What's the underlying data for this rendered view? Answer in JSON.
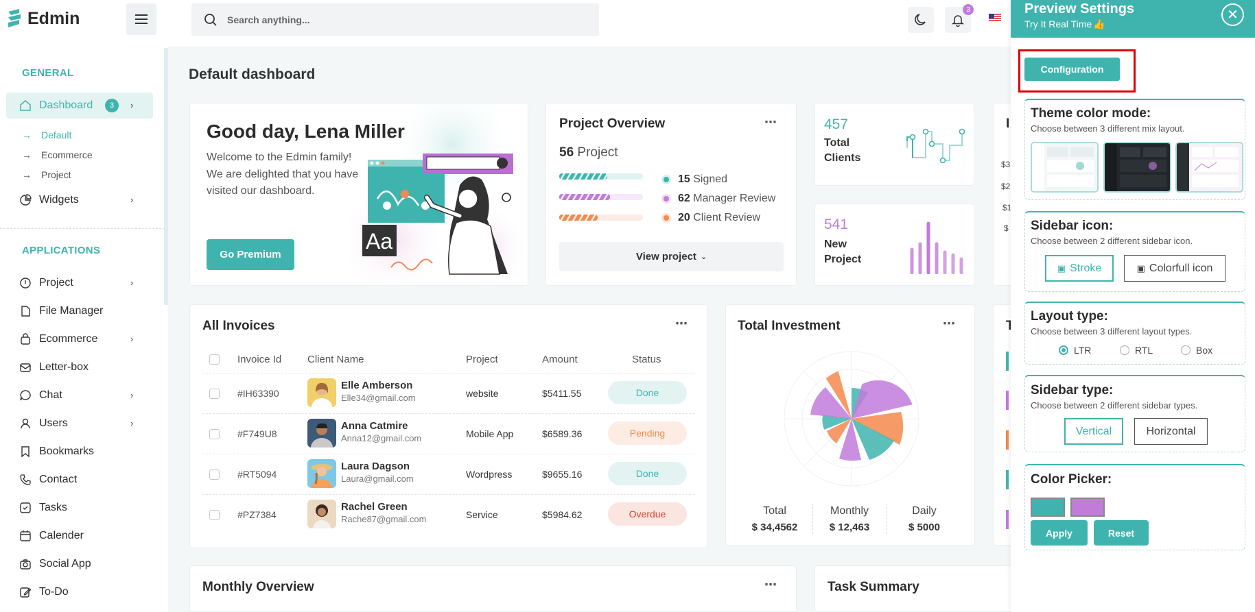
{
  "header": {
    "logo": "Edmin",
    "search_placeholder": "Search anything...",
    "notification_count": "3"
  },
  "sidebar": {
    "general_title": "GENERAL",
    "dashboard_label": "Dashboard",
    "dashboard_count": "3",
    "dashboard_subitems": [
      "Default",
      "Ecommerce",
      "Project"
    ],
    "widgets_label": "Widgets",
    "applications_title": "APPLICATIONS",
    "apps": [
      "Project",
      "File Manager",
      "Ecommerce",
      "Letter-box",
      "Chat",
      "Users",
      "Bookmarks",
      "Contact",
      "Tasks",
      "Calender",
      "Social App",
      "To-Do"
    ]
  },
  "page_title": "Default dashboard",
  "welcome": {
    "greeting": "Good day, Lena Miller",
    "text": "Welcome to the Edmin family! We are delighted that you have visited our dashboard.",
    "button": "Go Premium",
    "illustration_text": "Aa"
  },
  "project_overview": {
    "title": "Project Overview",
    "count": "56",
    "count_label": "Project",
    "legend": [
      {
        "value": "15",
        "label": "Signed",
        "color": "#3fb4ae"
      },
      {
        "value": "62",
        "label": "Manager Review",
        "color": "#c17bdb"
      },
      {
        "value": "20",
        "label": "Client Review",
        "color": "#f5884d"
      }
    ],
    "view_button": "View project"
  },
  "stats": {
    "clients_value": "457",
    "clients_label_1": "Total",
    "clients_label_2": "Clients",
    "projects_value": "541",
    "projects_label_1": "New",
    "projects_label_2": "Project"
  },
  "partial_card": {
    "letter": "I",
    "tick_prefixes": [
      "$3",
      "$2",
      "$1",
      "$"
    ]
  },
  "invoices": {
    "title": "All Invoices",
    "headers": [
      "Invoice Id",
      "Client Name",
      "Project",
      "Amount",
      "Status"
    ],
    "rows": [
      {
        "id": "#IH63390",
        "name": "Elle Amberson",
        "email": "Elle34@gmail.com",
        "project": "website",
        "amount": "$5411.55",
        "status": "Done"
      },
      {
        "id": "#F749U8",
        "name": "Anna Catmire",
        "email": "Anna12@gmail.com",
        "project": "Mobile App",
        "amount": "$6589.36",
        "status": "Pending"
      },
      {
        "id": "#RT5094",
        "name": "Laura Dagson",
        "email": "Laura@gmail.com",
        "project": "Wordpress",
        "amount": "$9655.16",
        "status": "Done"
      },
      {
        "id": "#PZ7384",
        "name": "Rachel Green",
        "email": "Rache87@gmail.com",
        "project": "Service",
        "amount": "$5984.62",
        "status": "Overdue"
      }
    ]
  },
  "investment": {
    "title": "Total Investment",
    "items": [
      {
        "label": "Total",
        "value": "$ 34,4562"
      },
      {
        "label": "Monthly",
        "value": "$ 12,463"
      },
      {
        "label": "Daily",
        "value": "$ 5000"
      }
    ]
  },
  "partial_card_2": {
    "letter": "T"
  },
  "monthly_overview": {
    "title": "Monthly Overview"
  },
  "task_summary": {
    "title": "Task Summary"
  },
  "panel": {
    "title": "Preview Settings",
    "subtitle": "Try It Real Time",
    "config_button": "Configuration",
    "theme_title": "Theme color mode:",
    "theme_sub": "Choose between 3 different mix layout.",
    "sidebar_icon_title": "Sidebar icon:",
    "sidebar_icon_sub": "Choose between 2 different sidebar icon.",
    "icon_options": [
      "Stroke",
      "Colorfull icon"
    ],
    "layout_title": "Layout type:",
    "layout_sub": "Choose between 3 different layout types.",
    "layout_options": [
      "LTR",
      "RTL",
      "Box"
    ],
    "sidebar_type_title": "Sidebar type:",
    "sidebar_type_sub": "Choose between 2 different sidebar types.",
    "sidebar_type_options": [
      "Vertical",
      "Horizontal"
    ],
    "color_picker_title": "Color Picker:",
    "colors": [
      "#3fb4ae",
      "#c17bdb"
    ],
    "apply": "Apply",
    "reset": "Reset"
  },
  "colors": {
    "primary": "#3fb4ae",
    "secondary": "#c17bdb",
    "orange": "#f5884d"
  }
}
